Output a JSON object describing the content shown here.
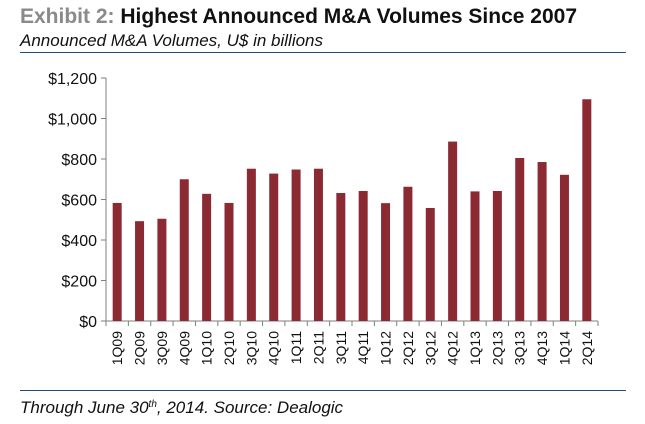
{
  "header": {
    "title_prefix": "Exhibit 2:",
    "title_main": "Highest Announced M&A Volumes Since 2007",
    "subtitle": "Announced M&A Volumes, U$ in billions"
  },
  "footnote": {
    "text_start": "Through June 30",
    "superscript": "th",
    "text_end": ", 2014. Source: Dealogic"
  },
  "chart_data": {
    "type": "bar",
    "title": "Highest Announced M&A Volumes Since 2007",
    "subtitle": "Announced M&A Volumes, U$ in billions",
    "xlabel": "",
    "ylabel": "",
    "ylim": [
      0,
      1200
    ],
    "yticks": [
      0,
      200,
      400,
      600,
      800,
      1000,
      1200
    ],
    "ytick_labels": [
      "$0",
      "$200",
      "$400",
      "$600",
      "$800",
      "$1,000",
      "$1,200"
    ],
    "grid": false,
    "legend": "none",
    "bar_color": "#8b2a33",
    "categories": [
      "1Q09",
      "2Q09",
      "3Q09",
      "4Q09",
      "1Q10",
      "2Q10",
      "3Q10",
      "4Q10",
      "1Q11",
      "2Q11",
      "3Q11",
      "4Q11",
      "1Q12",
      "2Q12",
      "3Q12",
      "4Q12",
      "1Q13",
      "2Q13",
      "3Q13",
      "4Q13",
      "1Q14",
      "2Q14"
    ],
    "series": [
      {
        "name": "Announced M&A Volumes",
        "values": [
          583,
          493,
          505,
          700,
          628,
          583,
          752,
          728,
          748,
          752,
          632,
          642,
          582,
          663,
          558,
          886,
          640,
          642,
          805,
          785,
          722,
          1095
        ]
      }
    ]
  }
}
